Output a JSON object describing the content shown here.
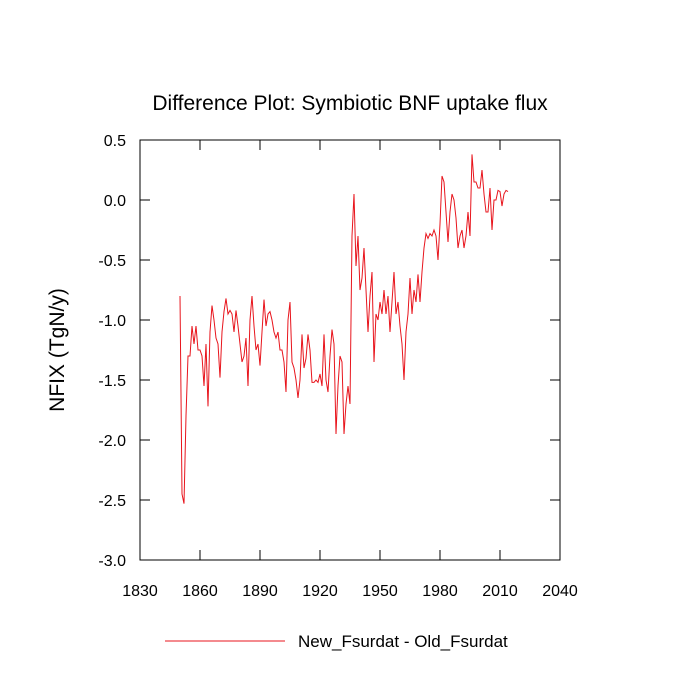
{
  "chart_data": {
    "type": "line",
    "title": "Difference Plot: Symbiotic BNF uptake flux",
    "y_label": "NFIX  (TgN/y)",
    "xlim": [
      1830,
      2040
    ],
    "xticks": [
      1830,
      1860,
      1890,
      1920,
      1950,
      1980,
      2010,
      2040
    ],
    "ylim": [
      -3.0,
      0.5
    ],
    "yticks": [
      0.5,
      {
        "value": 0,
        "label": "0.0"
      },
      -0.5,
      {
        "value": -1,
        "label": "-1.0"
      },
      -1.5,
      {
        "value": -2,
        "label": "-2.0"
      },
      -2.5,
      {
        "value": -3,
        "label": "-3.0"
      }
    ],
    "x": [
      1850,
      1851,
      1852,
      1853,
      1854,
      1855,
      1856,
      1857,
      1858,
      1859,
      1860,
      1861,
      1862,
      1863,
      1864,
      1865,
      1866,
      1867,
      1868,
      1869,
      1870,
      1871,
      1872,
      1873,
      1874,
      1875,
      1876,
      1877,
      1878,
      1879,
      1880,
      1881,
      1882,
      1883,
      1884,
      1885,
      1886,
      1887,
      1888,
      1889,
      1890,
      1891,
      1892,
      1893,
      1894,
      1895,
      1896,
      1897,
      1898,
      1899,
      1900,
      1901,
      1902,
      1903,
      1904,
      1905,
      1906,
      1907,
      1908,
      1909,
      1910,
      1911,
      1912,
      1913,
      1914,
      1915,
      1916,
      1917,
      1918,
      1919,
      1920,
      1921,
      1922,
      1923,
      1924,
      1925,
      1926,
      1927,
      1928,
      1929,
      1930,
      1931,
      1932,
      1933,
      1934,
      1935,
      1936,
      1937,
      1938,
      1939,
      1940,
      1941,
      1942,
      1943,
      1944,
      1945,
      1946,
      1947,
      1948,
      1949,
      1950,
      1951,
      1952,
      1953,
      1954,
      1955,
      1956,
      1957,
      1958,
      1959,
      1960,
      1961,
      1962,
      1963,
      1964,
      1965,
      1966,
      1967,
      1968,
      1969,
      1970,
      1971,
      1972,
      1973,
      1974,
      1975,
      1976,
      1977,
      1978,
      1979,
      1980,
      1981,
      1982,
      1983,
      1984,
      1985,
      1986,
      1987,
      1988,
      1989,
      1990,
      1991,
      1992,
      1993,
      1994,
      1995,
      1996,
      1997,
      1998,
      1999,
      2000,
      2001,
      2002,
      2003,
      2004,
      2005,
      2006,
      2007,
      2008,
      2009,
      2010,
      2011,
      2012,
      2013,
      2014
    ],
    "series": [
      {
        "name": "New_Fsurdat - Old_Fsurdat",
        "color": "#e8141c",
        "values": [
          -0.8,
          -2.45,
          -2.53,
          -1.8,
          -1.3,
          -1.3,
          -1.05,
          -1.2,
          -1.05,
          -1.25,
          -1.25,
          -1.3,
          -1.55,
          -1.2,
          -1.72,
          -1.1,
          -0.88,
          -1.0,
          -1.15,
          -1.2,
          -1.48,
          -1.1,
          -0.93,
          -0.82,
          -0.95,
          -0.92,
          -0.95,
          -1.1,
          -0.92,
          -1.05,
          -1.2,
          -1.35,
          -1.3,
          -1.15,
          -1.55,
          -1.0,
          -0.8,
          -1.05,
          -1.25,
          -1.2,
          -1.38,
          -1.1,
          -0.83,
          -1.05,
          -0.95,
          -0.93,
          -1.0,
          -1.1,
          -1.15,
          -1.1,
          -1.25,
          -1.25,
          -1.35,
          -1.6,
          -1.0,
          -0.85,
          -1.35,
          -1.4,
          -1.5,
          -1.65,
          -1.5,
          -1.12,
          -1.4,
          -1.32,
          -1.12,
          -1.25,
          -1.52,
          -1.52,
          -1.5,
          -1.52,
          -1.45,
          -1.55,
          -1.12,
          -1.5,
          -1.6,
          -1.3,
          -1.08,
          -1.2,
          -1.95,
          -1.55,
          -1.3,
          -1.35,
          -1.95,
          -1.7,
          -1.55,
          -1.7,
          -0.3,
          0.05,
          -0.55,
          -0.3,
          -0.75,
          -0.65,
          -0.4,
          -0.75,
          -1.1,
          -0.8,
          -0.6,
          -1.35,
          -0.95,
          -1.0,
          -0.85,
          -0.95,
          -0.75,
          -0.95,
          -0.8,
          -1.1,
          -0.85,
          -0.6,
          -0.95,
          -0.85,
          -1.05,
          -1.2,
          -1.5,
          -1.1,
          -0.95,
          -0.65,
          -0.95,
          -0.75,
          -0.85,
          -0.62,
          -0.85,
          -0.6,
          -0.4,
          -0.28,
          -0.32,
          -0.28,
          -0.3,
          -0.25,
          -0.3,
          -0.5,
          -0.2,
          0.2,
          0.15,
          -0.1,
          -0.35,
          -0.1,
          0.05,
          0.0,
          -0.15,
          -0.4,
          -0.3,
          -0.25,
          -0.4,
          -0.3,
          -0.1,
          -0.3,
          0.38,
          0.15,
          0.15,
          0.1,
          0.1,
          0.25,
          0.05,
          -0.1,
          -0.1,
          0.1,
          -0.25,
          0.0,
          0.0,
          0.08,
          0.07,
          -0.05,
          0.05,
          0.08,
          0.07
        ]
      }
    ]
  }
}
